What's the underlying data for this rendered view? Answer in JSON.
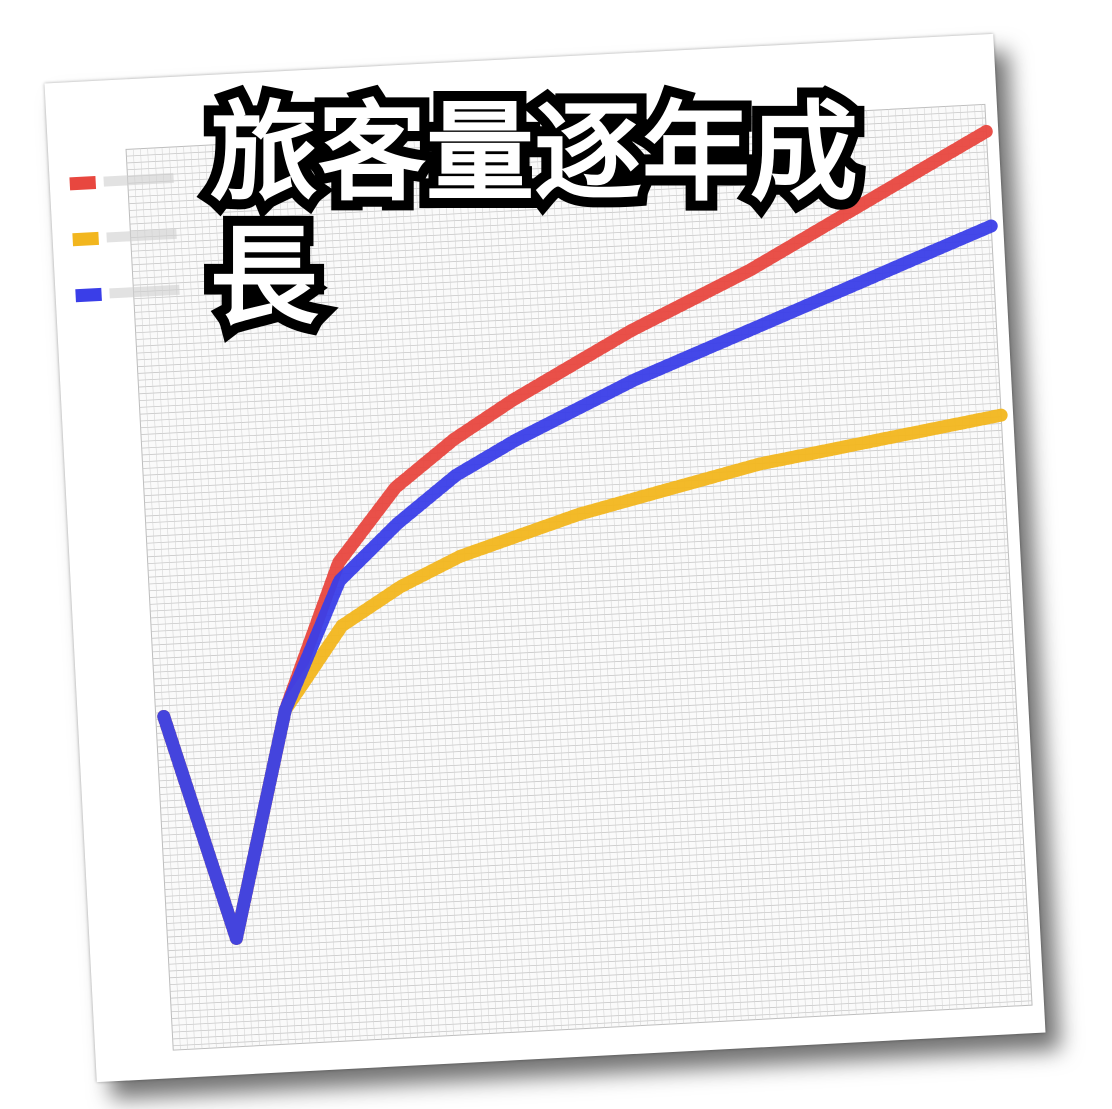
{
  "caption": "旅客量逐年成長",
  "chart_data": {
    "type": "line",
    "title": "",
    "xlabel": "",
    "ylabel": "",
    "x": [
      0,
      1,
      2,
      3,
      4,
      5,
      6,
      7,
      8,
      9,
      10,
      11,
      12,
      13,
      14
    ],
    "xlim": [
      0,
      14
    ],
    "ylim": [
      0,
      100
    ],
    "grid": true,
    "legend_position": "top-left",
    "series": [
      {
        "color": "#e8473f",
        "values": [
          37,
          12,
          37,
          53,
          61,
          66,
          70,
          73.5,
          77,
          80,
          83,
          86.5,
          90,
          93.5,
          97
        ]
      },
      {
        "color": "#f2b61e",
        "values": [
          37,
          12,
          37,
          46,
          50,
          53,
          55,
          57,
          58.5,
          60,
          61.5,
          62.5,
          63.5,
          64.5,
          65.5
        ]
      },
      {
        "color": "#3a3ee8",
        "values": [
          37,
          12,
          37,
          51,
          57,
          62,
          65.5,
          68.5,
          71.5,
          74,
          76.5,
          79,
          81.5,
          84,
          86.5
        ]
      }
    ]
  }
}
